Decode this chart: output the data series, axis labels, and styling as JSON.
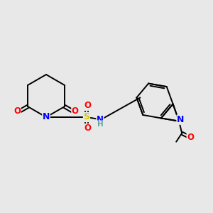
{
  "bg_color": "#e8e8e8",
  "atom_colors": {
    "C": "#000000",
    "N": "#0000ff",
    "O": "#ff0000",
    "S": "#cccc00",
    "H": "#5aaa9a"
  },
  "bond_color": "#000000",
  "lw": 1.4
}
